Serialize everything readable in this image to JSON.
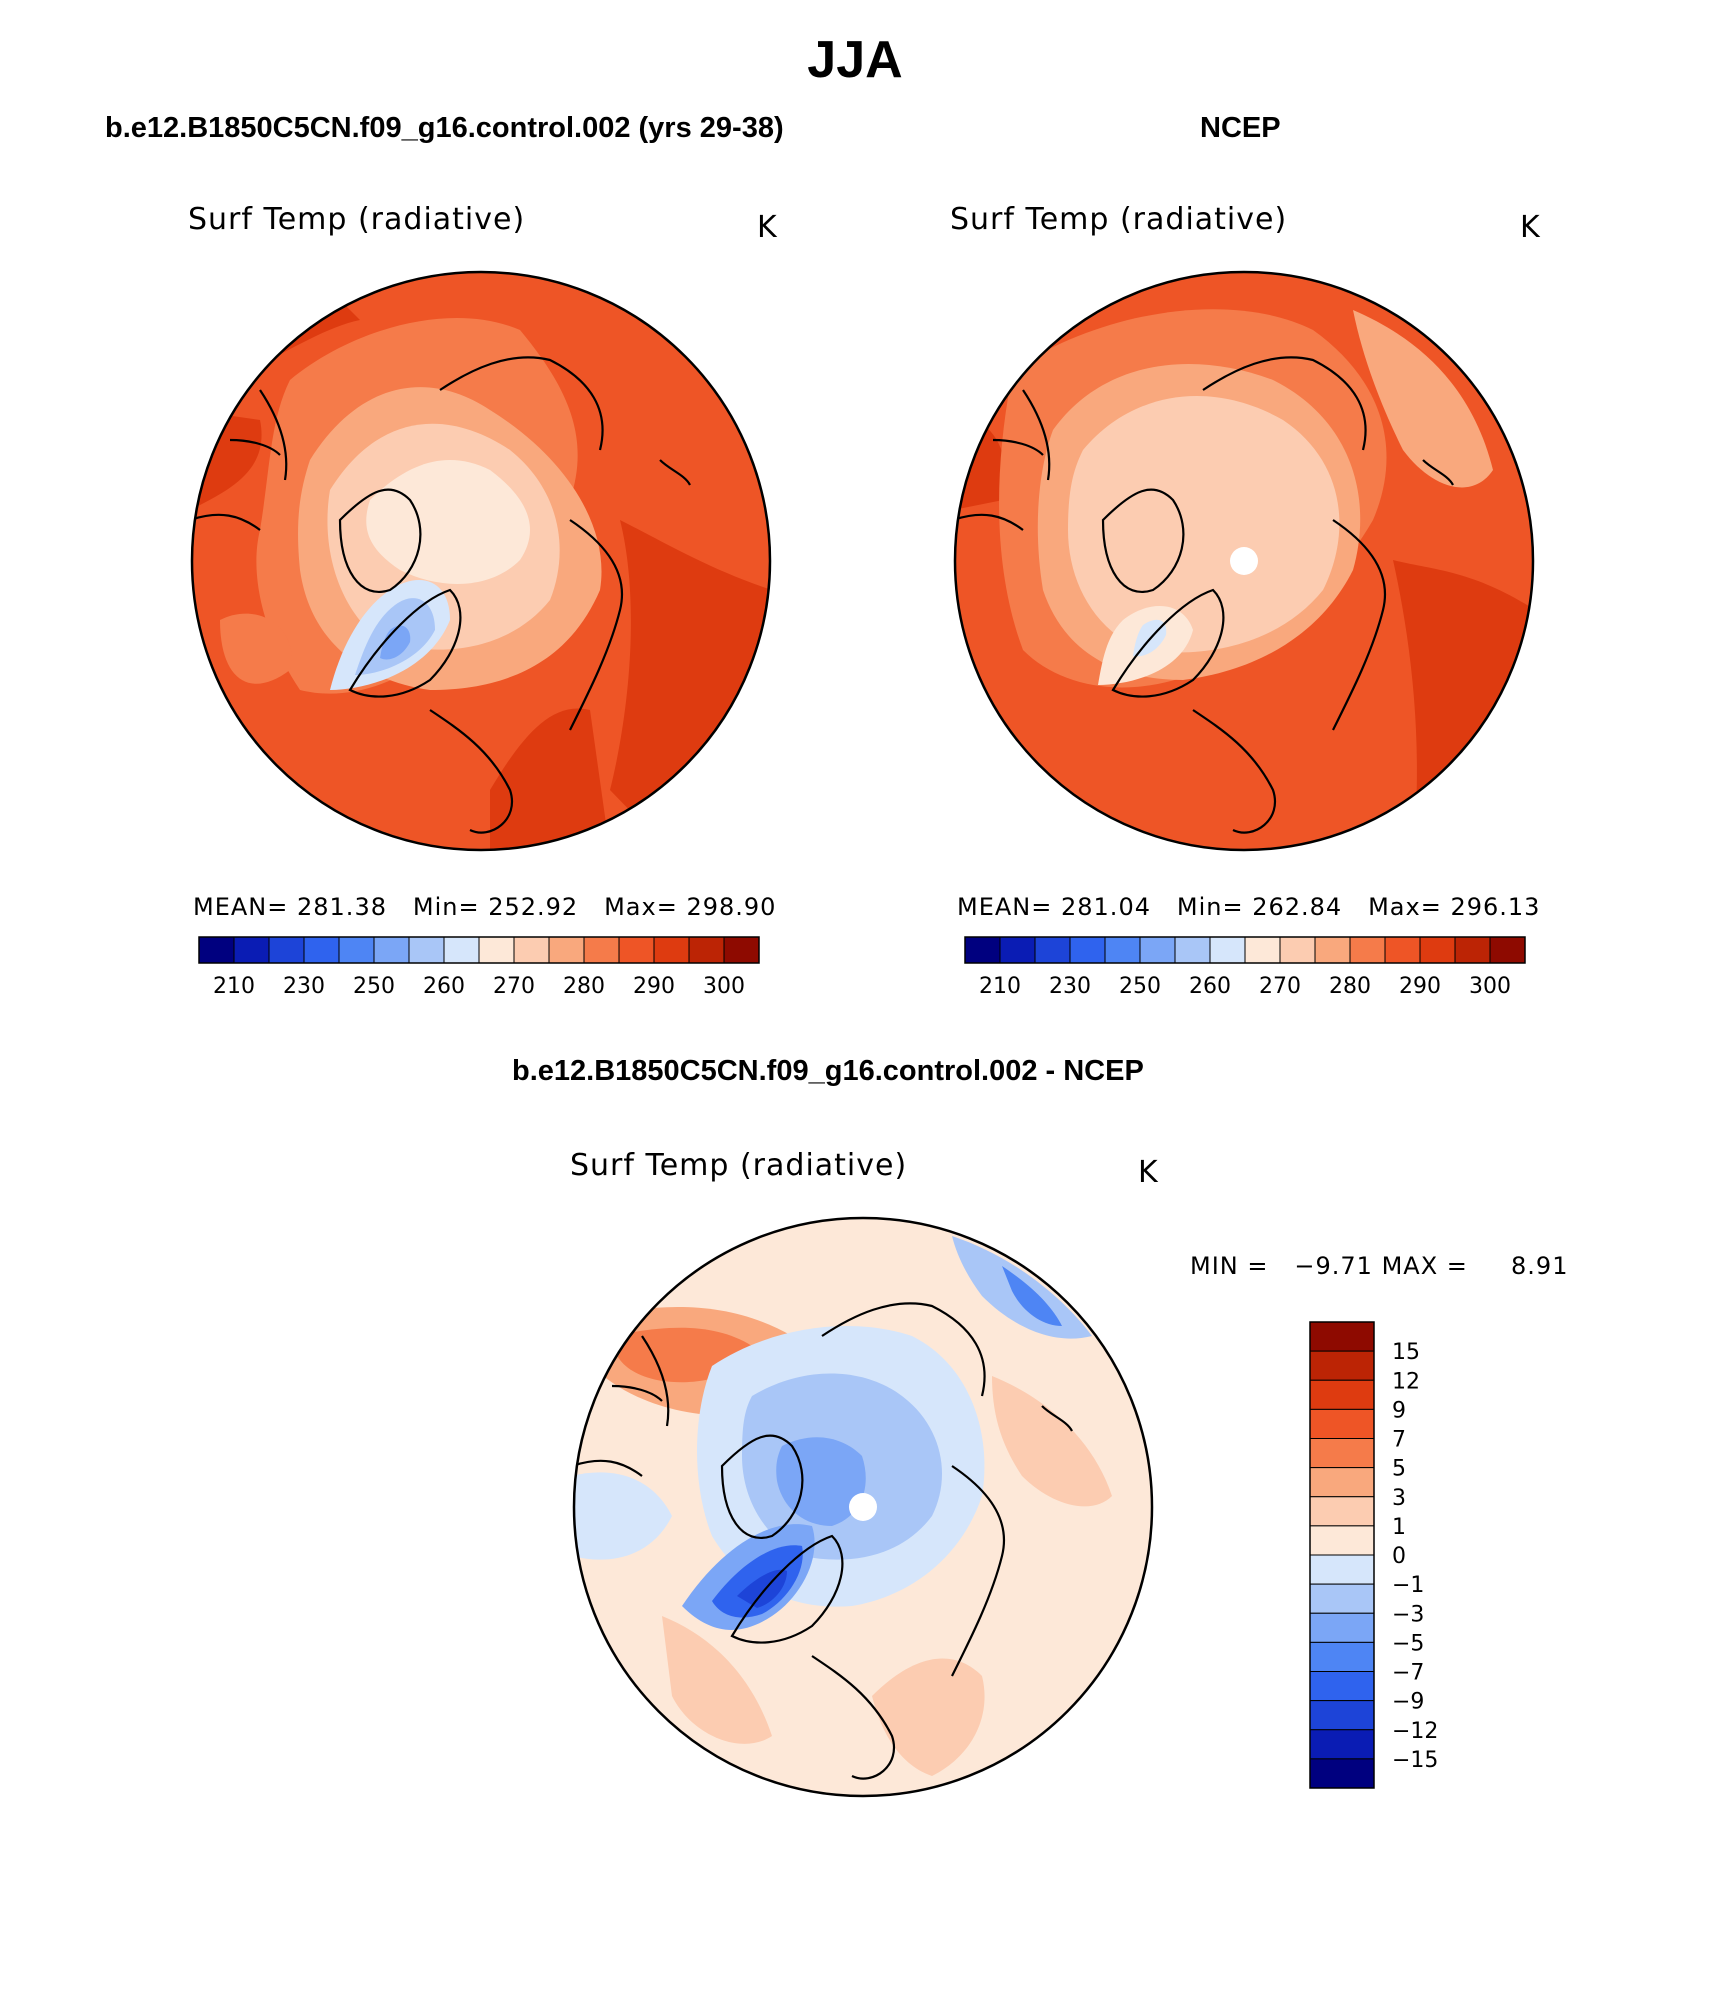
{
  "page": {
    "title": "JJA"
  },
  "panels": [
    {
      "title": "b.e12.B1850C5CN.f09_g16.control.002 (yrs 29-38)",
      "field": "Surf Temp (radiative)",
      "units": "K",
      "stats": {
        "mean_label": "MEAN=",
        "mean": "281.38",
        "min_label": "Min=",
        "min": "252.92",
        "max_label": "Max=",
        "max": "298.90"
      }
    },
    {
      "title": "NCEP",
      "field": "Surf Temp (radiative)",
      "units": "K",
      "stats": {
        "mean_label": "MEAN=",
        "mean": "281.04",
        "min_label": "Min=",
        "min": "262.84",
        "max_label": "Max=",
        "max": "296.13"
      }
    },
    {
      "title": "b.e12.B1850C5CN.f09_g16.control.002 - NCEP",
      "field": "Surf Temp (radiative)",
      "units": "K",
      "stats": {
        "min_label": "MIN =",
        "min": "−9.71",
        "max_label": "MAX =",
        "max": "8.91"
      }
    }
  ],
  "colorbar_abs": {
    "colors": [
      "#00007f",
      "#0a1cb4",
      "#1d44d8",
      "#2f63ee",
      "#4e85f4",
      "#7ba6f6",
      "#a9c6f7",
      "#d6e6fb",
      "#fde8d8",
      "#fcccb1",
      "#f9a87d",
      "#f57b4a",
      "#ee5526",
      "#de3b10",
      "#bc2405",
      "#8e0a00"
    ],
    "labels": [
      "210",
      "230",
      "250",
      "260",
      "270",
      "280",
      "290",
      "300"
    ]
  },
  "colorbar_diff": {
    "colors": [
      "#8e0a00",
      "#bc2405",
      "#de3b10",
      "#ee5526",
      "#f57b4a",
      "#f9a87d",
      "#fcccb1",
      "#fde8d8",
      "#d6e6fb",
      "#a9c6f7",
      "#7ba6f6",
      "#4e85f4",
      "#2f63ee",
      "#1d44d8",
      "#0a1cb4",
      "#00007f"
    ],
    "labels": [
      "15",
      "12",
      "9",
      "7",
      "5",
      "3",
      "1",
      "0",
      "−1",
      "−3",
      "−5",
      "−7",
      "−9",
      "−12",
      "−15"
    ]
  },
  "map_colors": {
    "outline": "#000000",
    "abs_base": "#ee5526",
    "diff_base": "#fde8d8"
  }
}
